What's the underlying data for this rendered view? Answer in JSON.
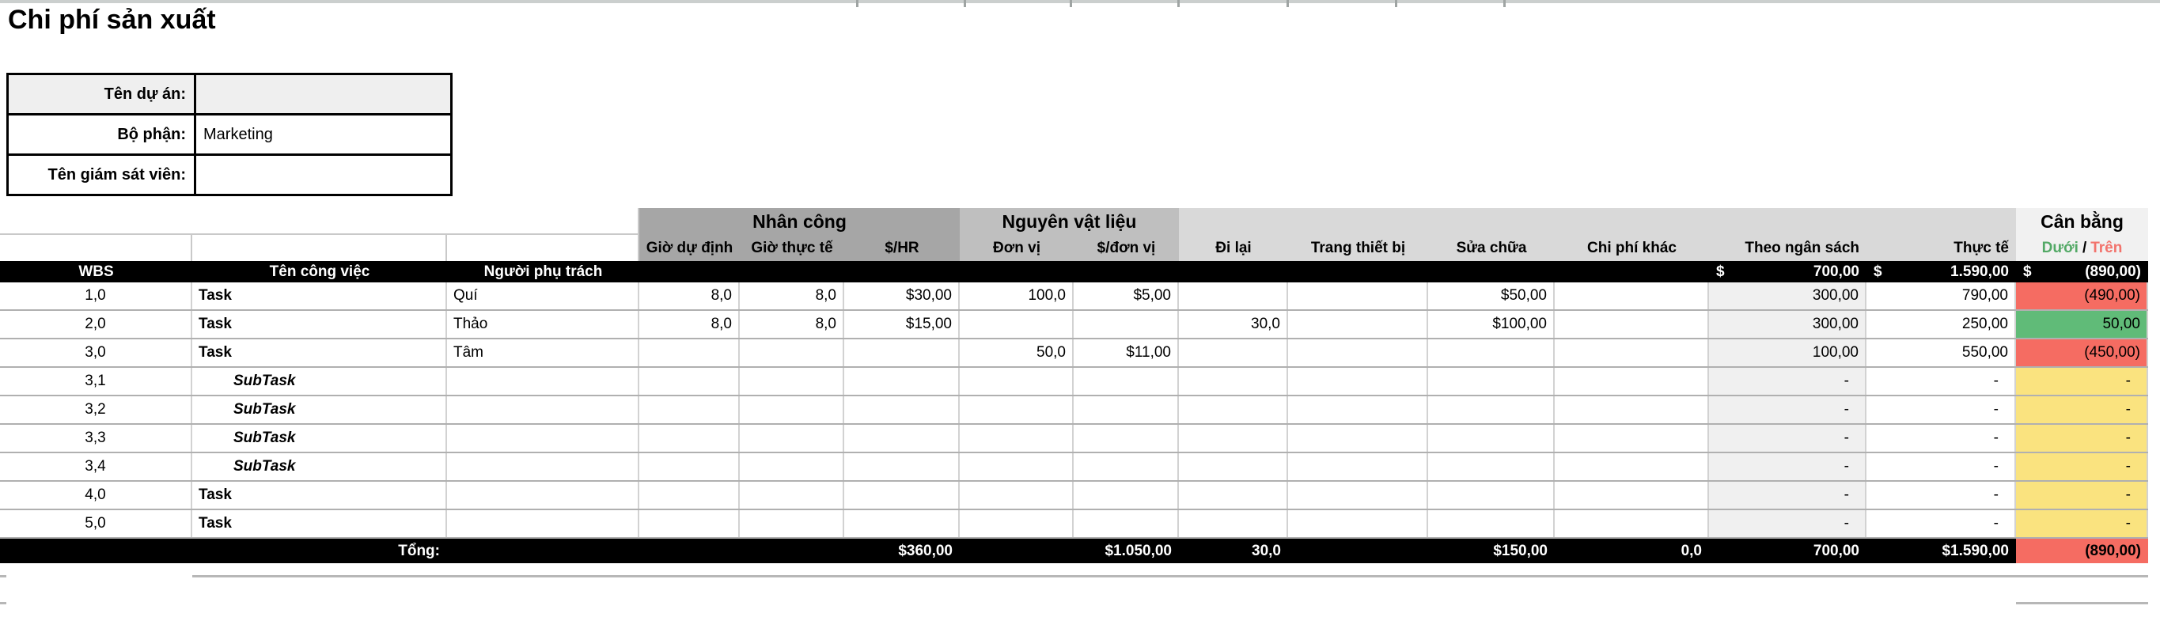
{
  "title": "Chi phí sản xuất",
  "form": {
    "rows": [
      {
        "label": "Tên dự án:",
        "value": ""
      },
      {
        "label": "Bộ phận:",
        "value": "Marketing"
      },
      {
        "label": "Tên giám sát viên:",
        "value": ""
      }
    ]
  },
  "table": {
    "groups": {
      "labor": "Nhân công",
      "materials": "Nguyên vật liệu",
      "balance": "Cân bằng",
      "balance_under": "Dưới",
      "balance_sep": "/",
      "balance_over": "Trên"
    },
    "columns": {
      "wbs": "WBS",
      "name": "Tên công việc",
      "owner": "Người phụ trách",
      "hours_planned": "Giờ dự định",
      "hours_actual": "Giờ thực tế",
      "rate": "$/HR",
      "units": "Đơn vị",
      "unit_cost": "$/đơn vị",
      "travel": "Đi lại",
      "equipment": "Trang thiết bị",
      "repair": "Sửa chữa",
      "other": "Chi phí khác",
      "budget": "Theo ngân sách",
      "actual": "Thực tế"
    },
    "summary": {
      "currency": "$",
      "budget": "700,00",
      "actual": "1.590,00",
      "balance": "(890,00)"
    },
    "rows": [
      {
        "wbs": "1,0",
        "name": "Task",
        "type": "task",
        "owner": "Quí",
        "hours_planned": "8,0",
        "hours_actual": "8,0",
        "rate": "$30,00",
        "units": "100,0",
        "unit_cost": "$5,00",
        "travel": "",
        "equipment": "",
        "repair": "$50,00",
        "other": "",
        "budget": "300,00",
        "actual": "790,00",
        "balance": "(490,00)",
        "balance_state": "over"
      },
      {
        "wbs": "2,0",
        "name": "Task",
        "type": "task",
        "owner": "Thảo",
        "hours_planned": "8,0",
        "hours_actual": "8,0",
        "rate": "$15,00",
        "units": "",
        "unit_cost": "",
        "travel": "30,0",
        "equipment": "",
        "repair": "$100,00",
        "other": "",
        "budget": "300,00",
        "actual": "250,00",
        "balance": "50,00",
        "balance_state": "under"
      },
      {
        "wbs": "3,0",
        "name": "Task",
        "type": "task",
        "owner": "Tâm",
        "hours_planned": "",
        "hours_actual": "",
        "rate": "",
        "units": "50,0",
        "unit_cost": "$11,00",
        "travel": "",
        "equipment": "",
        "repair": "",
        "other": "",
        "budget": "100,00",
        "actual": "550,00",
        "balance": "(450,00)",
        "balance_state": "over"
      },
      {
        "wbs": "3,1",
        "name": "SubTask",
        "type": "subtask",
        "owner": "",
        "hours_planned": "",
        "hours_actual": "",
        "rate": "",
        "units": "",
        "unit_cost": "",
        "travel": "",
        "equipment": "",
        "repair": "",
        "other": "",
        "budget": "-",
        "actual": "-",
        "balance": "-",
        "balance_state": "none"
      },
      {
        "wbs": "3,2",
        "name": "SubTask",
        "type": "subtask",
        "owner": "",
        "hours_planned": "",
        "hours_actual": "",
        "rate": "",
        "units": "",
        "unit_cost": "",
        "travel": "",
        "equipment": "",
        "repair": "",
        "other": "",
        "budget": "-",
        "actual": "-",
        "balance": "-",
        "balance_state": "none"
      },
      {
        "wbs": "3,3",
        "name": "SubTask",
        "type": "subtask",
        "owner": "",
        "hours_planned": "",
        "hours_actual": "",
        "rate": "",
        "units": "",
        "unit_cost": "",
        "travel": "",
        "equipment": "",
        "repair": "",
        "other": "",
        "budget": "-",
        "actual": "-",
        "balance": "-",
        "balance_state": "none"
      },
      {
        "wbs": "3,4",
        "name": "SubTask",
        "type": "subtask",
        "owner": "",
        "hours_planned": "",
        "hours_actual": "",
        "rate": "",
        "units": "",
        "unit_cost": "",
        "travel": "",
        "equipment": "",
        "repair": "",
        "other": "",
        "budget": "-",
        "actual": "-",
        "balance": "-",
        "balance_state": "none"
      },
      {
        "wbs": "4,0",
        "name": "Task",
        "type": "task",
        "owner": "",
        "hours_planned": "",
        "hours_actual": "",
        "rate": "",
        "units": "",
        "unit_cost": "",
        "travel": "",
        "equipment": "",
        "repair": "",
        "other": "",
        "budget": "-",
        "actual": "-",
        "balance": "-",
        "balance_state": "none"
      },
      {
        "wbs": "5,0",
        "name": "Task",
        "type": "task",
        "owner": "",
        "hours_planned": "",
        "hours_actual": "",
        "rate": "",
        "units": "",
        "unit_cost": "",
        "travel": "",
        "equipment": "",
        "repair": "",
        "other": "",
        "budget": "-",
        "actual": "-",
        "balance": "-",
        "balance_state": "none"
      }
    ],
    "total": {
      "label": "Tổng:",
      "rate": "$360,00",
      "unit_cost": "$1.050,00",
      "travel": "30,0",
      "repair": "$150,00",
      "other": "0,0",
      "budget": "700,00",
      "actual": "$1.590,00",
      "balance": "(890,00)"
    }
  },
  "colors": {
    "over_fill": "#f56c62",
    "under_fill": "#60bb78",
    "neutral_fill": "#fae37f",
    "under_text": "#53a966",
    "over_text": "#f2736c",
    "labor_band": "#a6a6a6",
    "materials_band": "#bfbfbf",
    "expenses_band": "#d9d9d9",
    "balance_band": "#f1f1f1"
  }
}
